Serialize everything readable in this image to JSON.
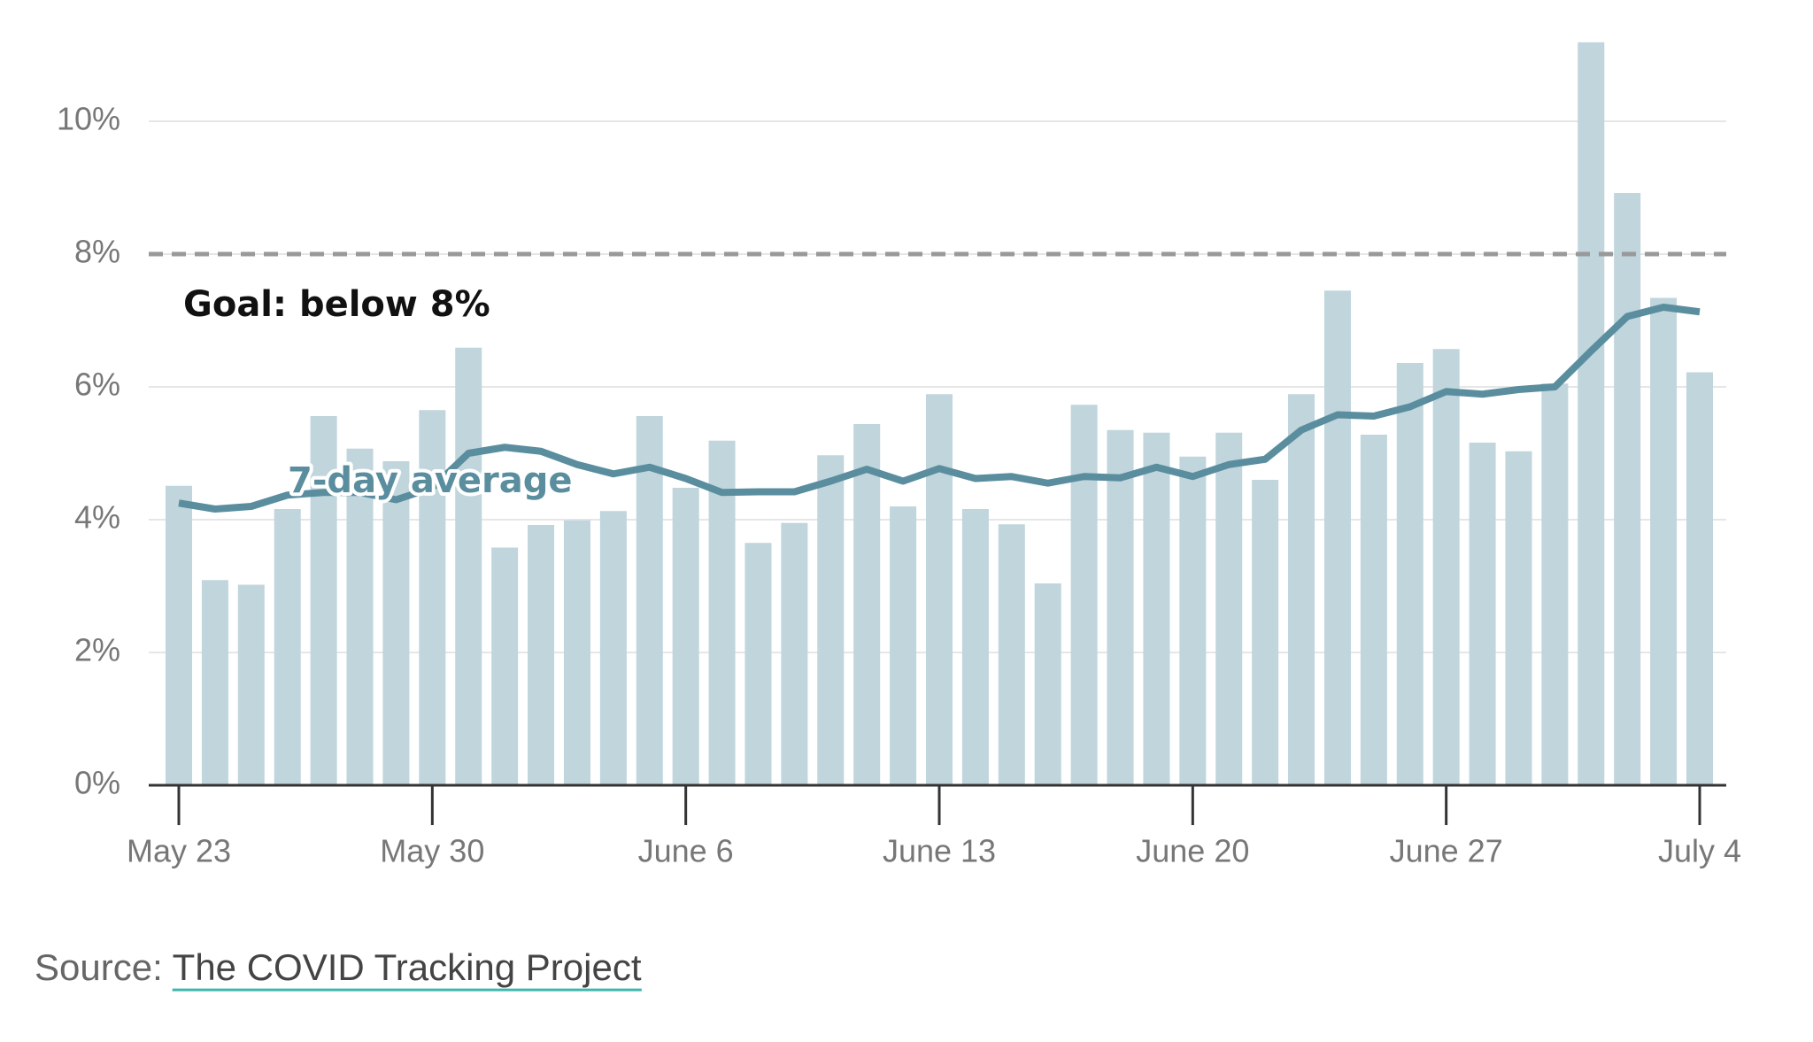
{
  "chart_data": {
    "type": "bar",
    "categories": [
      "May 23",
      null,
      null,
      null,
      null,
      null,
      null,
      "May 30",
      null,
      null,
      null,
      null,
      null,
      null,
      "June 6",
      null,
      null,
      null,
      null,
      null,
      null,
      "June 13",
      null,
      null,
      null,
      null,
      null,
      null,
      "June 20",
      null,
      null,
      null,
      null,
      null,
      null,
      "June 27",
      null,
      null,
      null,
      null,
      null,
      null,
      "July 4"
    ],
    "series": [
      {
        "type": "bar",
        "color": "#c0d5dc",
        "values": [
          4.51,
          3.09,
          3.02,
          4.16,
          5.56,
          5.07,
          4.88,
          5.65,
          6.59,
          3.58,
          3.92,
          3.99,
          4.13,
          5.56,
          4.48,
          5.19,
          3.65,
          3.95,
          4.97,
          5.44,
          4.2,
          5.89,
          4.16,
          3.93,
          3.04,
          5.73,
          5.35,
          5.31,
          4.95,
          5.31,
          4.6,
          5.89,
          7.45,
          5.28,
          6.36,
          6.57,
          5.16,
          5.03,
          6.05,
          11.19,
          8.92,
          7.34,
          6.22
        ]
      },
      {
        "type": "line",
        "name": "7-day average",
        "color": "#5a8e9f",
        "values": [
          4.25,
          4.16,
          4.2,
          4.37,
          4.41,
          4.41,
          4.3,
          4.48,
          5.0,
          5.09,
          5.03,
          4.83,
          4.69,
          4.79,
          4.62,
          4.41,
          4.42,
          4.42,
          4.58,
          4.76,
          4.58,
          4.77,
          4.62,
          4.65,
          4.55,
          4.65,
          4.63,
          4.79,
          4.65,
          4.83,
          4.91,
          5.35,
          5.58,
          5.56,
          5.7,
          5.93,
          5.89,
          5.96,
          6.0,
          6.54,
          7.06,
          7.2,
          7.13
        ]
      }
    ],
    "ylim": [
      0,
      11.2
    ],
    "yticks": [
      {
        "value": 0,
        "label": "0%"
      },
      {
        "value": 2,
        "label": "2%"
      },
      {
        "value": 4,
        "label": "4%"
      },
      {
        "value": 6,
        "label": "6%"
      },
      {
        "value": 8,
        "label": "8%"
      },
      {
        "value": 10,
        "label": "10%"
      }
    ],
    "grid": true,
    "goal": {
      "value": 8,
      "label": "Goal: below 8%"
    },
    "source": {
      "prefix": "Source:",
      "link": "The COVID Tracking Project"
    }
  }
}
